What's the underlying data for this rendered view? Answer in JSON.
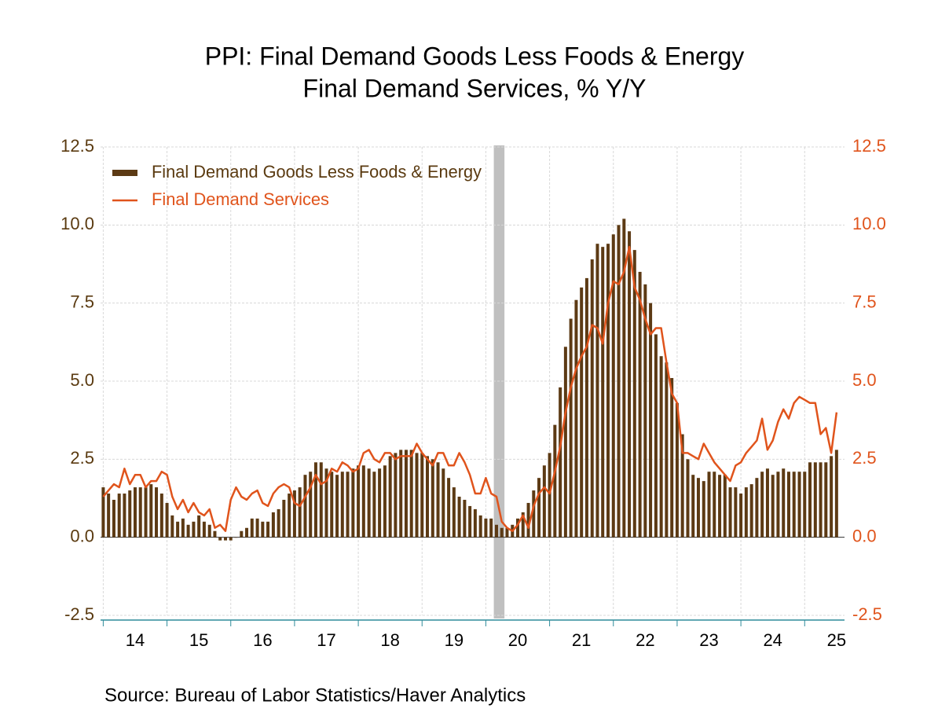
{
  "chart_data": {
    "type": "bar_line",
    "title": "PPI: Final Demand Goods Less Foods & Energy",
    "subtitle": "Final Demand Services, % Y/Y",
    "source": "Source:  Bureau of Labor Statistics/Haver Analytics",
    "x": [
      2014,
      2014.083,
      2014.167,
      2014.25,
      2014.333,
      2014.417,
      2014.5,
      2014.583,
      2014.667,
      2014.75,
      2014.833,
      2014.917,
      2015,
      2015.083,
      2015.167,
      2015.25,
      2015.333,
      2015.417,
      2015.5,
      2015.583,
      2015.667,
      2015.75,
      2015.833,
      2015.917,
      2016,
      2016.083,
      2016.167,
      2016.25,
      2016.333,
      2016.417,
      2016.5,
      2016.583,
      2016.667,
      2016.75,
      2016.833,
      2016.917,
      2017,
      2017.083,
      2017.167,
      2017.25,
      2017.333,
      2017.417,
      2017.5,
      2017.583,
      2017.667,
      2017.75,
      2017.833,
      2017.917,
      2018,
      2018.083,
      2018.167,
      2018.25,
      2018.333,
      2018.417,
      2018.5,
      2018.583,
      2018.667,
      2018.75,
      2018.833,
      2018.917,
      2019,
      2019.083,
      2019.167,
      2019.25,
      2019.333,
      2019.417,
      2019.5,
      2019.583,
      2019.667,
      2019.75,
      2019.833,
      2019.917,
      2020,
      2020.083,
      2020.167,
      2020.25,
      2020.333,
      2020.417,
      2020.5,
      2020.583,
      2020.667,
      2020.75,
      2020.833,
      2020.917,
      2021,
      2021.083,
      2021.167,
      2021.25,
      2021.333,
      2021.417,
      2021.5,
      2021.583,
      2021.667,
      2021.75,
      2021.833,
      2021.917,
      2022,
      2022.083,
      2022.167,
      2022.25,
      2022.333,
      2022.417,
      2022.5,
      2022.583,
      2022.667,
      2022.75,
      2022.833,
      2022.917,
      2023,
      2023.083,
      2023.167,
      2023.25,
      2023.333,
      2023.417,
      2023.5,
      2023.583,
      2023.667,
      2023.75,
      2023.833,
      2023.917,
      2024,
      2024.083,
      2024.167,
      2024.25,
      2024.333,
      2024.417,
      2024.5,
      2024.583,
      2024.667,
      2024.75,
      2024.833,
      2024.917,
      2025,
      2025.083,
      2025.167,
      2025.25,
      2025.333,
      2025.417,
      2025.5
    ],
    "series": [
      {
        "name": "Final Demand Goods Less Foods & Energy",
        "kind": "bar",
        "color": "#5c3a14",
        "values": [
          1.6,
          1.4,
          1.2,
          1.4,
          1.4,
          1.5,
          1.6,
          1.6,
          1.6,
          1.7,
          1.6,
          1.4,
          1.1,
          0.7,
          0.5,
          0.6,
          0.4,
          0.5,
          0.7,
          0.5,
          0.4,
          0.2,
          -0.1,
          -0.1,
          -0.1,
          0.0,
          0.2,
          0.3,
          0.6,
          0.6,
          0.5,
          0.5,
          0.8,
          0.9,
          1.2,
          1.4,
          1.5,
          1.6,
          2.0,
          2.1,
          2.4,
          2.4,
          2.2,
          2.1,
          2.0,
          2.1,
          2.1,
          2.2,
          2.3,
          2.3,
          2.2,
          2.1,
          2.2,
          2.3,
          2.6,
          2.7,
          2.8,
          2.8,
          2.8,
          2.7,
          2.7,
          2.6,
          2.5,
          2.4,
          2.2,
          1.9,
          1.6,
          1.3,
          1.2,
          1.0,
          0.9,
          0.7,
          0.6,
          0.6,
          0.4,
          0.3,
          0.3,
          0.4,
          0.6,
          0.8,
          1.1,
          1.5,
          1.9,
          2.3,
          2.7,
          3.6,
          4.8,
          6.1,
          7.0,
          7.6,
          8.0,
          8.3,
          8.9,
          9.4,
          9.3,
          9.4,
          9.7,
          10.0,
          10.2,
          9.8,
          9.2,
          8.5,
          8.1,
          7.5,
          6.5,
          5.8,
          5.6,
          5.1,
          4.3,
          3.3,
          2.5,
          2.0,
          1.9,
          1.8,
          2.1,
          2.1,
          2.0,
          2.0,
          1.6,
          1.6,
          1.4,
          1.6,
          1.7,
          1.9,
          2.1,
          2.2,
          2.0,
          2.1,
          2.2,
          2.1,
          2.1,
          2.1,
          2.1,
          2.4,
          2.4,
          2.4,
          2.4,
          2.6,
          2.8
        ]
      },
      {
        "name": "Final Demand Services",
        "kind": "line",
        "color": "#e0541c",
        "axis": "y2",
        "values": [
          1.3,
          1.5,
          1.7,
          1.6,
          2.2,
          1.7,
          2.0,
          2.0,
          1.6,
          1.8,
          1.8,
          2.1,
          2.0,
          1.3,
          0.9,
          1.2,
          0.8,
          1.1,
          0.8,
          0.7,
          0.9,
          0.3,
          0.4,
          0.2,
          1.2,
          1.6,
          1.3,
          1.2,
          1.4,
          1.5,
          1.1,
          1.0,
          1.4,
          1.6,
          1.7,
          1.6,
          1.1,
          1.0,
          1.3,
          1.6,
          2.0,
          1.7,
          1.8,
          2.2,
          2.1,
          2.4,
          2.3,
          2.1,
          2.2,
          2.7,
          2.8,
          2.5,
          2.4,
          2.7,
          2.7,
          2.5,
          2.6,
          2.6,
          2.6,
          3.0,
          2.7,
          2.5,
          2.3,
          2.7,
          2.7,
          2.3,
          2.3,
          2.7,
          2.4,
          2.0,
          1.4,
          1.4,
          1.9,
          1.4,
          1.3,
          0.5,
          0.3,
          0.2,
          0.4,
          0.7,
          0.3,
          1.0,
          1.4,
          1.6,
          1.4,
          2.1,
          2.9,
          4.0,
          4.8,
          5.4,
          5.8,
          6.1,
          6.8,
          6.7,
          6.2,
          7.5,
          8.2,
          8.1,
          8.5,
          9.3,
          8.0,
          7.6,
          7.0,
          6.5,
          6.7,
          6.7,
          5.6,
          4.6,
          4.3,
          2.7,
          2.7,
          2.6,
          2.5,
          3.0,
          2.7,
          2.4,
          2.2,
          2.0,
          1.8,
          2.3,
          2.4,
          2.7,
          2.9,
          3.1,
          3.8,
          2.8,
          3.1,
          3.7,
          4.1,
          3.8,
          4.3,
          4.5,
          4.4,
          4.3,
          4.3,
          3.3,
          3.5,
          2.7,
          4.0
        ]
      }
    ],
    "xlim": [
      2013.958,
      2025.625
    ],
    "xticks": [
      2014,
      2015,
      2016,
      2017,
      2018,
      2019,
      2020,
      2021,
      2022,
      2023,
      2024,
      2025
    ],
    "xtick_labels": [
      {
        "value": 2014.5,
        "label": "14"
      },
      {
        "value": 2015.5,
        "label": "15"
      },
      {
        "value": 2016.5,
        "label": "16"
      },
      {
        "value": 2017.5,
        "label": "17"
      },
      {
        "value": 2018.5,
        "label": "18"
      },
      {
        "value": 2019.5,
        "label": "19"
      },
      {
        "value": 2020.5,
        "label": "20"
      },
      {
        "value": 2021.5,
        "label": "21"
      },
      {
        "value": 2022.5,
        "label": "22"
      },
      {
        "value": 2023.5,
        "label": "23"
      },
      {
        "value": 2024.5,
        "label": "24"
      },
      {
        "value": 2025.5,
        "label": "25"
      }
    ],
    "ylim": [
      -2.5,
      12.5
    ],
    "yticks": [
      -2.5,
      {
        "value": 0,
        "label": "0.0"
      },
      2.5,
      {
        "value": 5,
        "label": "5.0"
      },
      7.5,
      {
        "value": 10,
        "label": "10.0"
      },
      12.5
    ],
    "y2lim": [
      -2.5,
      12.5
    ],
    "y2ticks": [
      -2.5,
      {
        "value": 0,
        "label": "0.0"
      },
      2.5,
      {
        "value": 5,
        "label": "5.0"
      },
      7.5,
      {
        "value": 10,
        "label": "10.0"
      },
      12.5
    ],
    "recession": [
      2020.125,
      2020.292
    ],
    "grid": true,
    "legend": "upper-left"
  }
}
